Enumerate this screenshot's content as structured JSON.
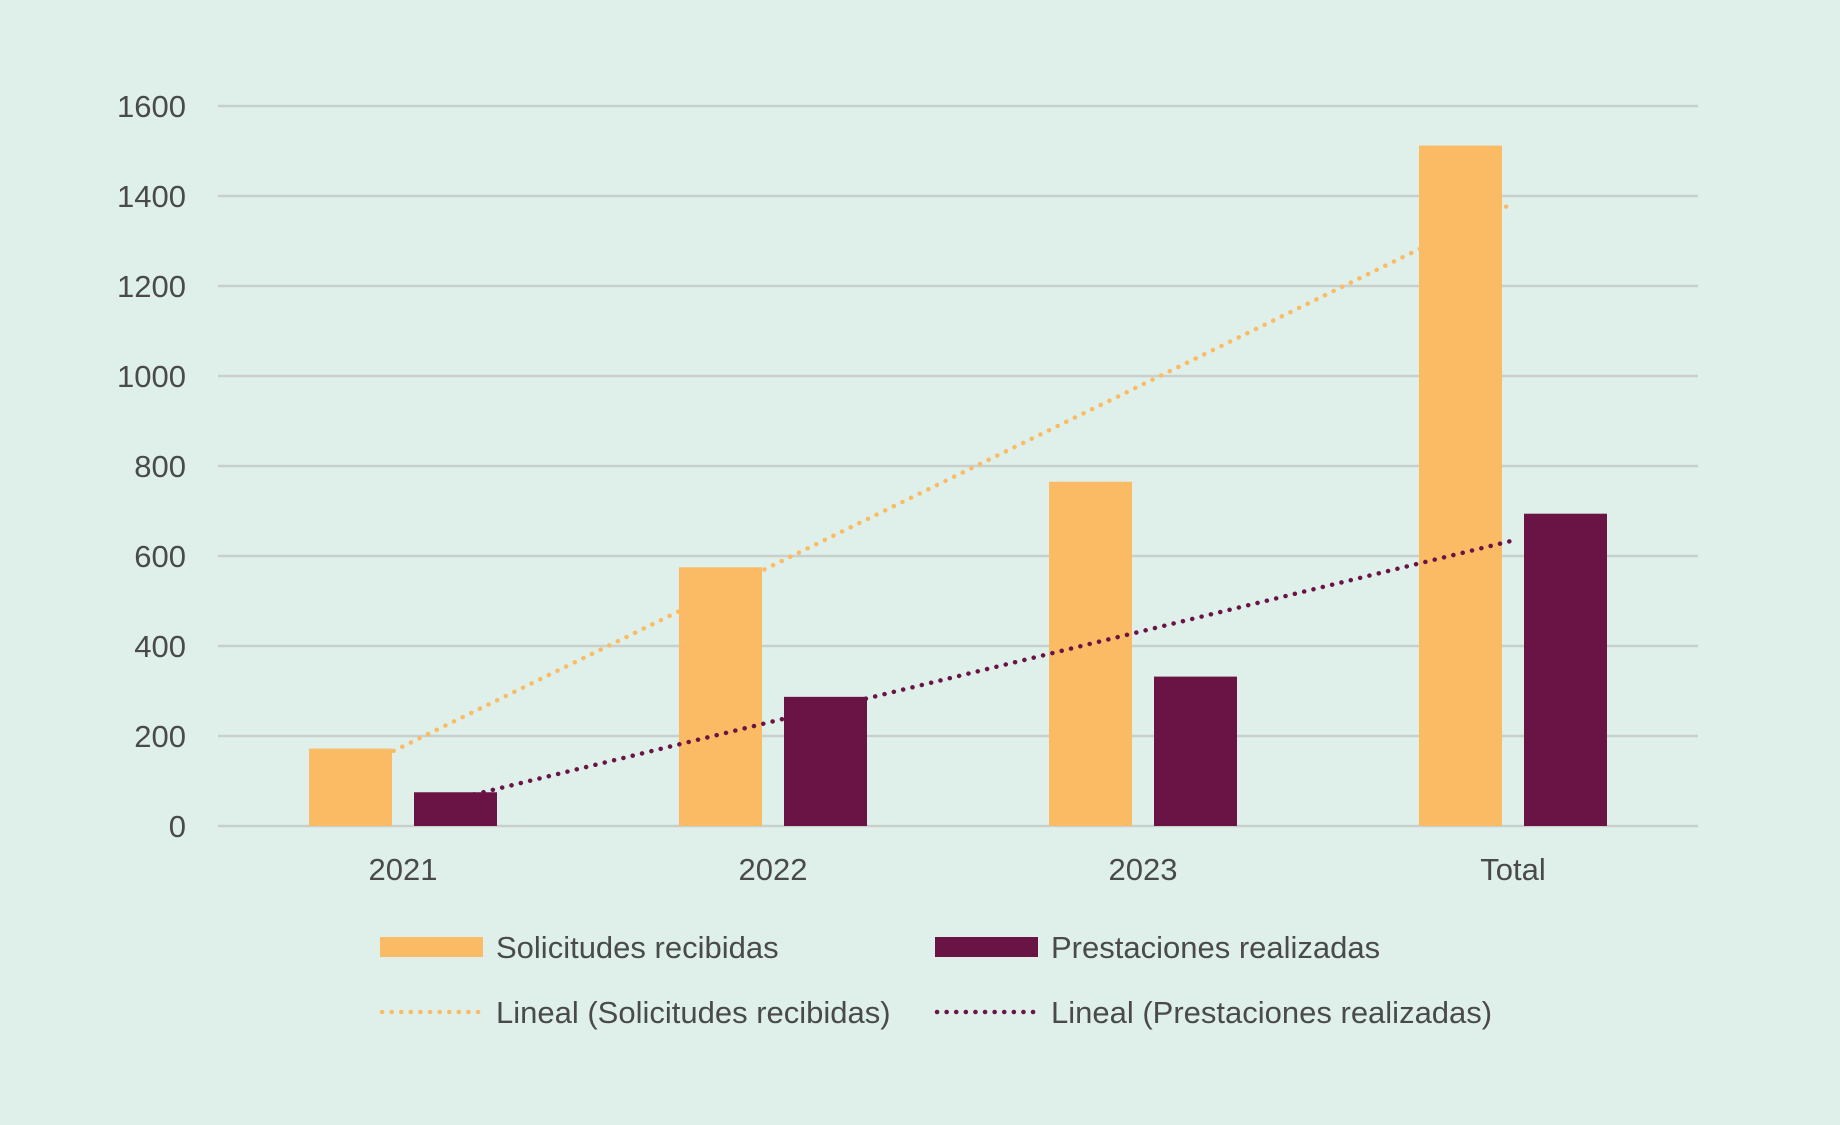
{
  "chart_data": {
    "type": "bar",
    "categories": [
      "2021",
      "2022",
      "2023",
      "Total"
    ],
    "series": [
      {
        "name": "Solicitudes recibidas",
        "values": [
          172,
          575,
          765,
          1512
        ],
        "color": "#fbbb64"
      },
      {
        "name": "Prestaciones realizadas",
        "values": [
          75,
          287,
          332,
          694
        ],
        "color": "#6a1446"
      }
    ],
    "trendlines": [
      {
        "name": "Lineal (Solicitudes recibidas)",
        "of_series": "Solicitudes recibidas",
        "style": "dotted",
        "color": "#fbbb64",
        "start_value": 120,
        "end_value": 1385
      },
      {
        "name": "Lineal (Prestaciones realizadas)",
        "of_series": "Prestaciones realizadas",
        "style": "dotted",
        "color": "#6a1446",
        "start_value": 60,
        "end_value": 635
      }
    ],
    "title": "",
    "xlabel": "",
    "ylabel": "",
    "ylim": [
      0,
      1600
    ],
    "yticks": [
      0,
      200,
      400,
      600,
      800,
      1000,
      1200,
      1400,
      1600
    ],
    "grid": true,
    "legend_position": "bottom",
    "background": "#dff0ea"
  }
}
